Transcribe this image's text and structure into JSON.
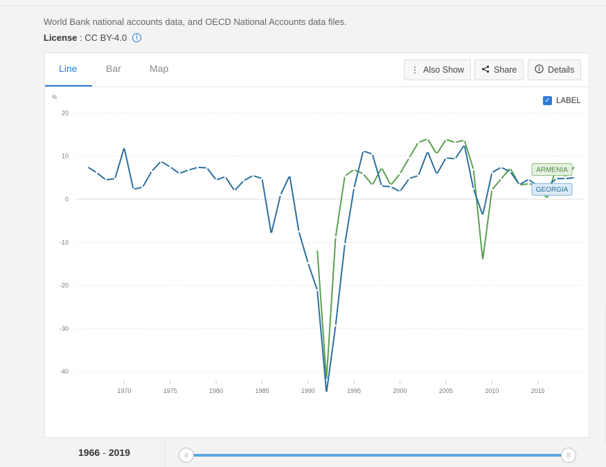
{
  "header": {
    "source_text": "World Bank national accounts data, and OECD National Accounts data files.",
    "license_label": "License",
    "license_sep": " : ",
    "license_value": "CC BY-4.0"
  },
  "tabs": [
    {
      "label": "Line",
      "active": true
    },
    {
      "label": "Bar",
      "active": false
    },
    {
      "label": "Map",
      "active": false
    }
  ],
  "toolbar": {
    "also_show": "Also Show",
    "share": "Share",
    "details": "Details"
  },
  "label_toggle": {
    "text": "LABEL",
    "checked": true
  },
  "range": {
    "start": "1966",
    "sep": "-",
    "end": "2019"
  },
  "colors": {
    "accent": "#2b7bd6",
    "georgia": "#2b6f9e",
    "armenia": "#5aa050"
  },
  "chart_data": {
    "type": "line",
    "ylabel": "%",
    "ylim": [
      -48,
      22
    ],
    "xlim": [
      1964.7,
      2020
    ],
    "yticks": [
      20,
      10,
      0,
      -10,
      -20,
      -30,
      -40
    ],
    "xticks": [
      1970,
      1975,
      1980,
      1985,
      1990,
      1995,
      2000,
      2005,
      2010,
      2015
    ],
    "grid": true,
    "series": [
      {
        "name": "GEORGIA",
        "color": "#2b6f9e",
        "x": [
          1966,
          1967,
          1968,
          1969,
          1970,
          1971,
          1972,
          1973,
          1974,
          1975,
          1976,
          1977,
          1978,
          1979,
          1980,
          1981,
          1982,
          1983,
          1984,
          1985,
          1986,
          1987,
          1988,
          1989,
          1990,
          1991,
          1992,
          1993,
          1994,
          1995,
          1996,
          1997,
          1998,
          1999,
          2000,
          2001,
          2002,
          2003,
          2004,
          2005,
          2006,
          2007,
          2008,
          2009,
          2010,
          2011,
          2012,
          2013,
          2014,
          2015,
          2016,
          2017,
          2018,
          2019
        ],
        "values": [
          7.5,
          6.2,
          4.5,
          4.8,
          12.0,
          2.3,
          2.8,
          6.5,
          8.8,
          7.5,
          6.0,
          6.8,
          7.4,
          7.3,
          4.5,
          5.2,
          2.0,
          4.3,
          5.5,
          4.8,
          -8.0,
          1.0,
          5.5,
          -7.5,
          -14.8,
          -21.1,
          -44.9,
          -29.3,
          -10.4,
          2.6,
          11.2,
          10.5,
          3.1,
          2.9,
          1.8,
          4.8,
          5.5,
          11.1,
          5.8,
          9.6,
          9.4,
          12.6,
          2.4,
          -3.7,
          6.2,
          7.4,
          6.4,
          3.4,
          4.6,
          3.0,
          2.9,
          4.8,
          4.8,
          5.0
        ]
      },
      {
        "name": "ARMENIA",
        "color": "#5aa050",
        "x": [
          1991,
          1992,
          1993,
          1994,
          1995,
          1996,
          1997,
          1998,
          1999,
          2000,
          2001,
          2002,
          2003,
          2004,
          2005,
          2006,
          2007,
          2008,
          2009,
          2010,
          2011,
          2012,
          2013,
          2014,
          2015,
          2016,
          2017,
          2018,
          2019
        ],
        "values": [
          -11.7,
          -41.8,
          -8.8,
          5.4,
          6.9,
          5.9,
          3.3,
          7.3,
          3.3,
          5.9,
          9.6,
          13.2,
          14.0,
          10.5,
          13.9,
          13.2,
          13.7,
          6.9,
          -14.1,
          2.2,
          4.7,
          7.2,
          3.3,
          3.6,
          3.2,
          0.2,
          7.5,
          5.2,
          7.6
        ]
      }
    ]
  }
}
